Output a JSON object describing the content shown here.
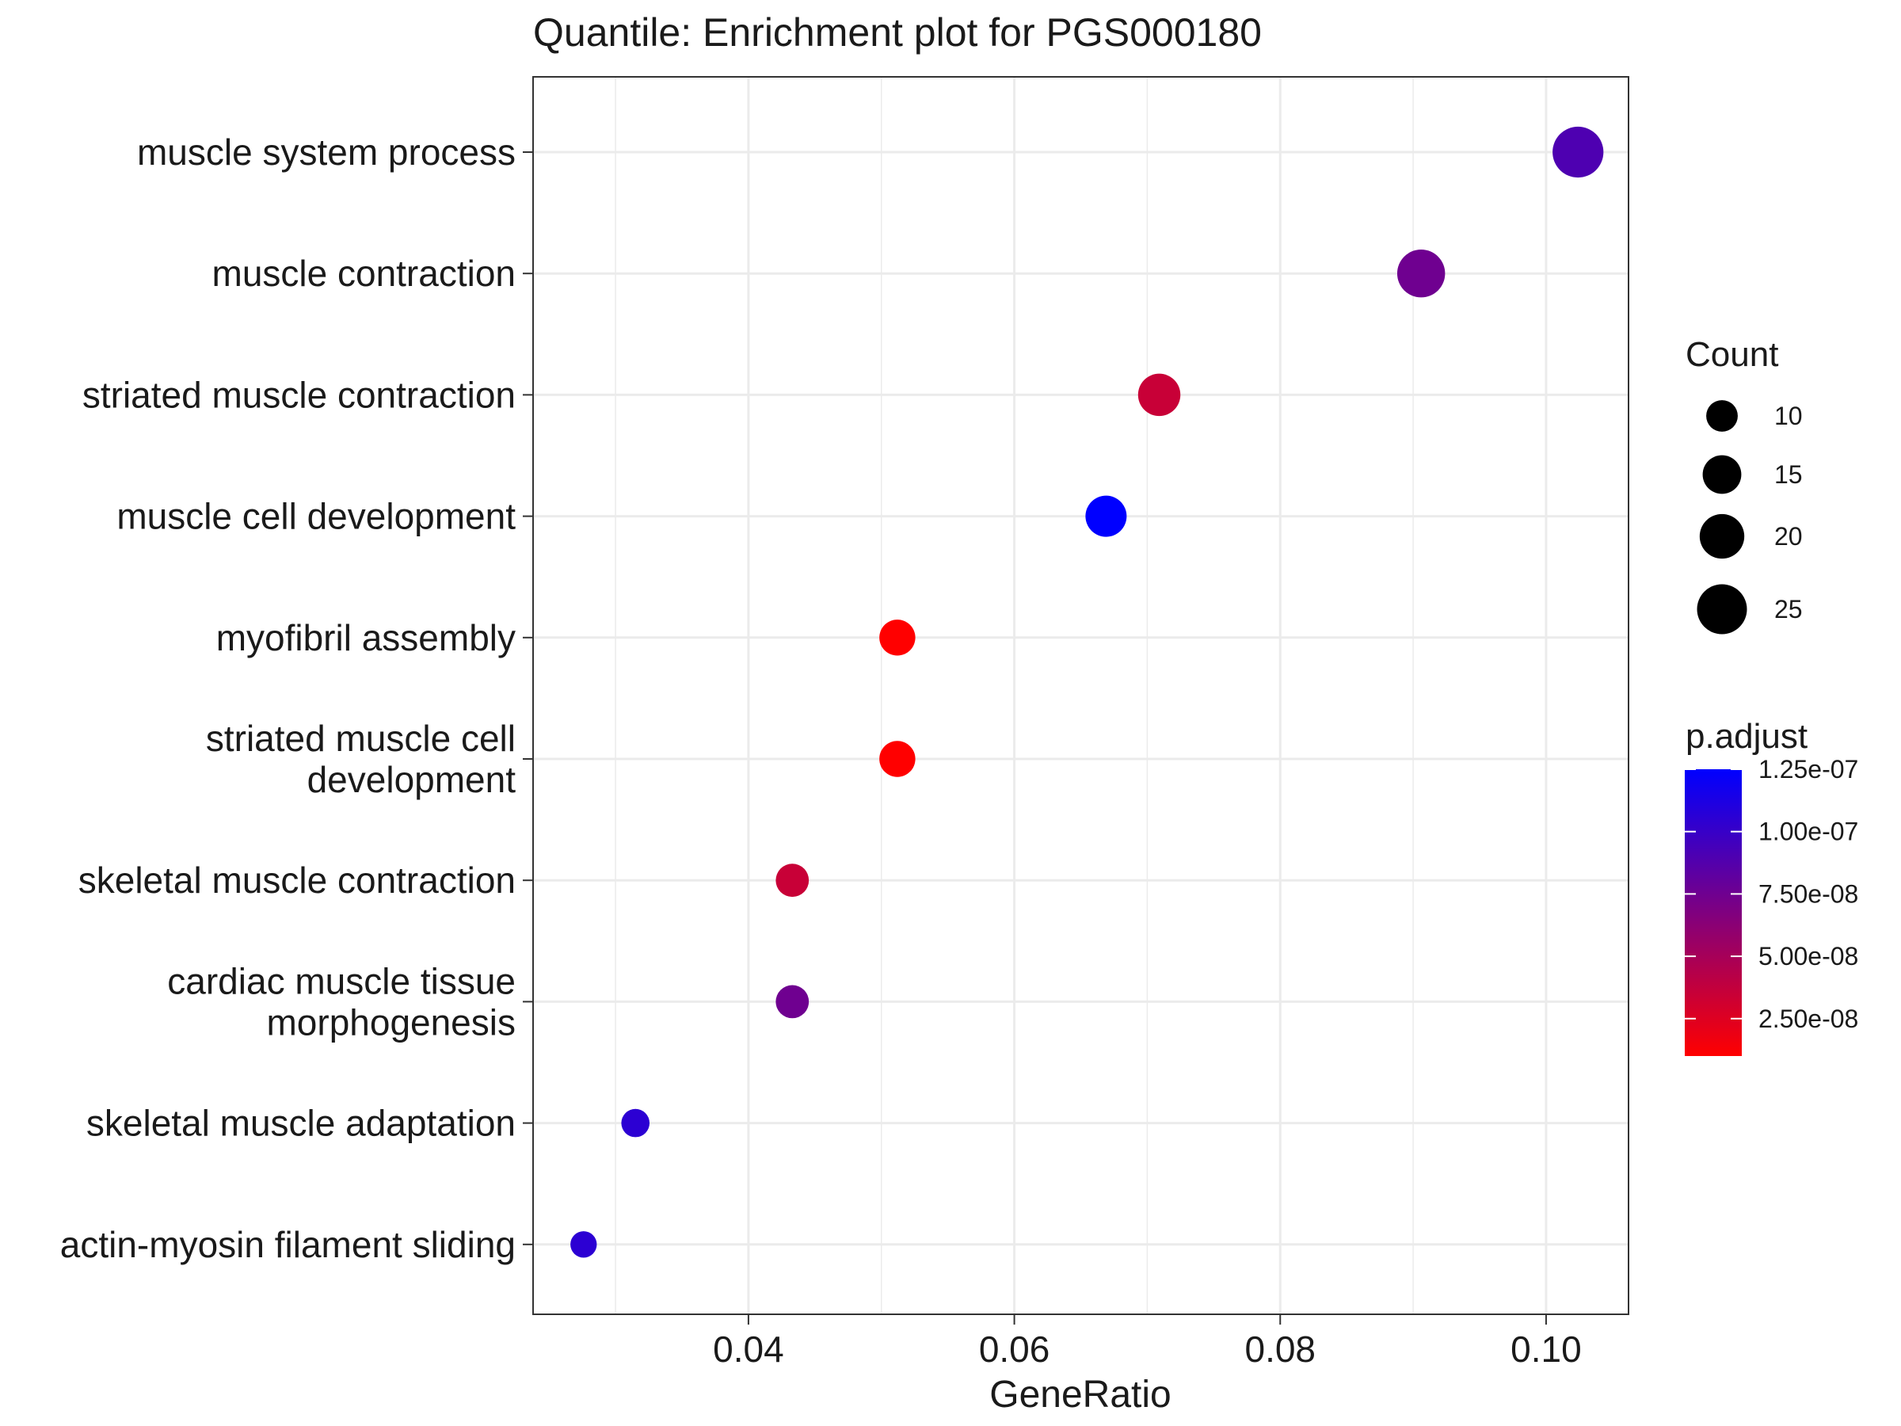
{
  "chart_data": {
    "type": "scatter",
    "title": "Quantile: Enrichment plot for PGS000180",
    "xlabel": "GeneRatio",
    "ylabel": "",
    "xlim": [
      0.0238,
      0.1062
    ],
    "x_ticks": [
      0.04,
      0.06,
      0.08,
      0.1
    ],
    "x_tick_labels": [
      "0.04",
      "0.06",
      "0.08",
      "0.10"
    ],
    "grid": true,
    "legend_position": "right",
    "categories": [
      [
        "muscle system process"
      ],
      [
        "muscle contraction"
      ],
      [
        "striated muscle contraction"
      ],
      [
        "muscle cell development"
      ],
      [
        "myofibril assembly"
      ],
      [
        "striated muscle cell",
        "development"
      ],
      [
        "skeletal muscle contraction"
      ],
      [
        "cardiac muscle tissue",
        "morphogenesis"
      ],
      [
        "skeletal muscle adaptation"
      ],
      [
        "actin-myosin filament sliding"
      ]
    ],
    "points": [
      {
        "gene_ratio": 0.1024,
        "count": 26,
        "p_adjust": 9e-08
      },
      {
        "gene_ratio": 0.0906,
        "count": 23,
        "p_adjust": 7.5e-08
      },
      {
        "gene_ratio": 0.0709,
        "count": 18,
        "p_adjust": 3.5e-08
      },
      {
        "gene_ratio": 0.0669,
        "count": 17,
        "p_adjust": 1.25e-07
      },
      {
        "gene_ratio": 0.0512,
        "count": 13,
        "p_adjust": 1e-08
      },
      {
        "gene_ratio": 0.0512,
        "count": 13,
        "p_adjust": 1e-08
      },
      {
        "gene_ratio": 0.0433,
        "count": 11,
        "p_adjust": 3.5e-08
      },
      {
        "gene_ratio": 0.0433,
        "count": 11,
        "p_adjust": 7.5e-08
      },
      {
        "gene_ratio": 0.0315,
        "count": 8,
        "p_adjust": 1.05e-07
      },
      {
        "gene_ratio": 0.0276,
        "count": 7,
        "p_adjust": 1.05e-07
      }
    ],
    "size_legend": {
      "title": "Count",
      "values": [
        10,
        15,
        20,
        25
      ],
      "labels": [
        "10",
        "15",
        "20",
        "25"
      ]
    },
    "color_legend": {
      "title": "p.adjust",
      "min": 1e-08,
      "max": 1.25e-07,
      "low_color": "#ff0000",
      "high_color": "#0000ff",
      "ticks": [
        1.25e-07,
        1e-07,
        7.5e-08,
        5e-08,
        2.5e-08
      ],
      "tick_labels": [
        "1.25e-07",
        "1.00e-07",
        "7.50e-08",
        "5.00e-08",
        "2.50e-08"
      ]
    },
    "colors": {
      "panel_border": "#333333",
      "grid": "#ebebeb",
      "text": "#1a1a1a"
    }
  }
}
